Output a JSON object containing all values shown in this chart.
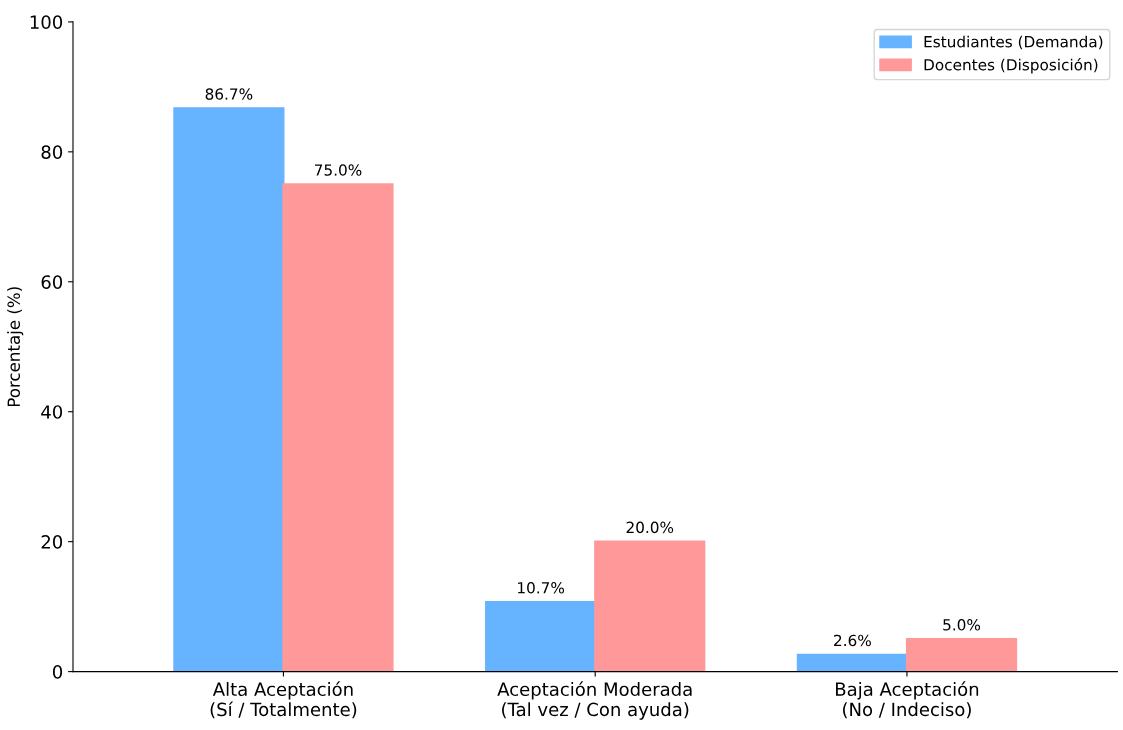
{
  "chart_data": {
    "type": "bar",
    "ylabel": "Porcentaje (%)",
    "categories": [
      "Alta Aceptación\n(Sí / Totalmente)",
      "Aceptación Moderada\n(Tal vez / Con ayuda)",
      "Baja Aceptación\n(No / Indeciso)"
    ],
    "series": [
      {
        "name": "Estudiantes (Demanda)",
        "color": "#66b3ff",
        "values": [
          86.7,
          10.7,
          2.6
        ],
        "value_labels": [
          "86.7%",
          "10.7%",
          "2.6%"
        ]
      },
      {
        "name": "Docentes (Disposición)",
        "color": "#ff9999",
        "values": [
          75.0,
          20.0,
          5.0
        ],
        "value_labels": [
          "75.0%",
          "20.0%",
          "5.0%"
        ]
      }
    ],
    "ylim": [
      0,
      100
    ],
    "yticks": [
      0,
      20,
      40,
      60,
      80,
      100
    ],
    "grid": false,
    "legend": "top right"
  }
}
